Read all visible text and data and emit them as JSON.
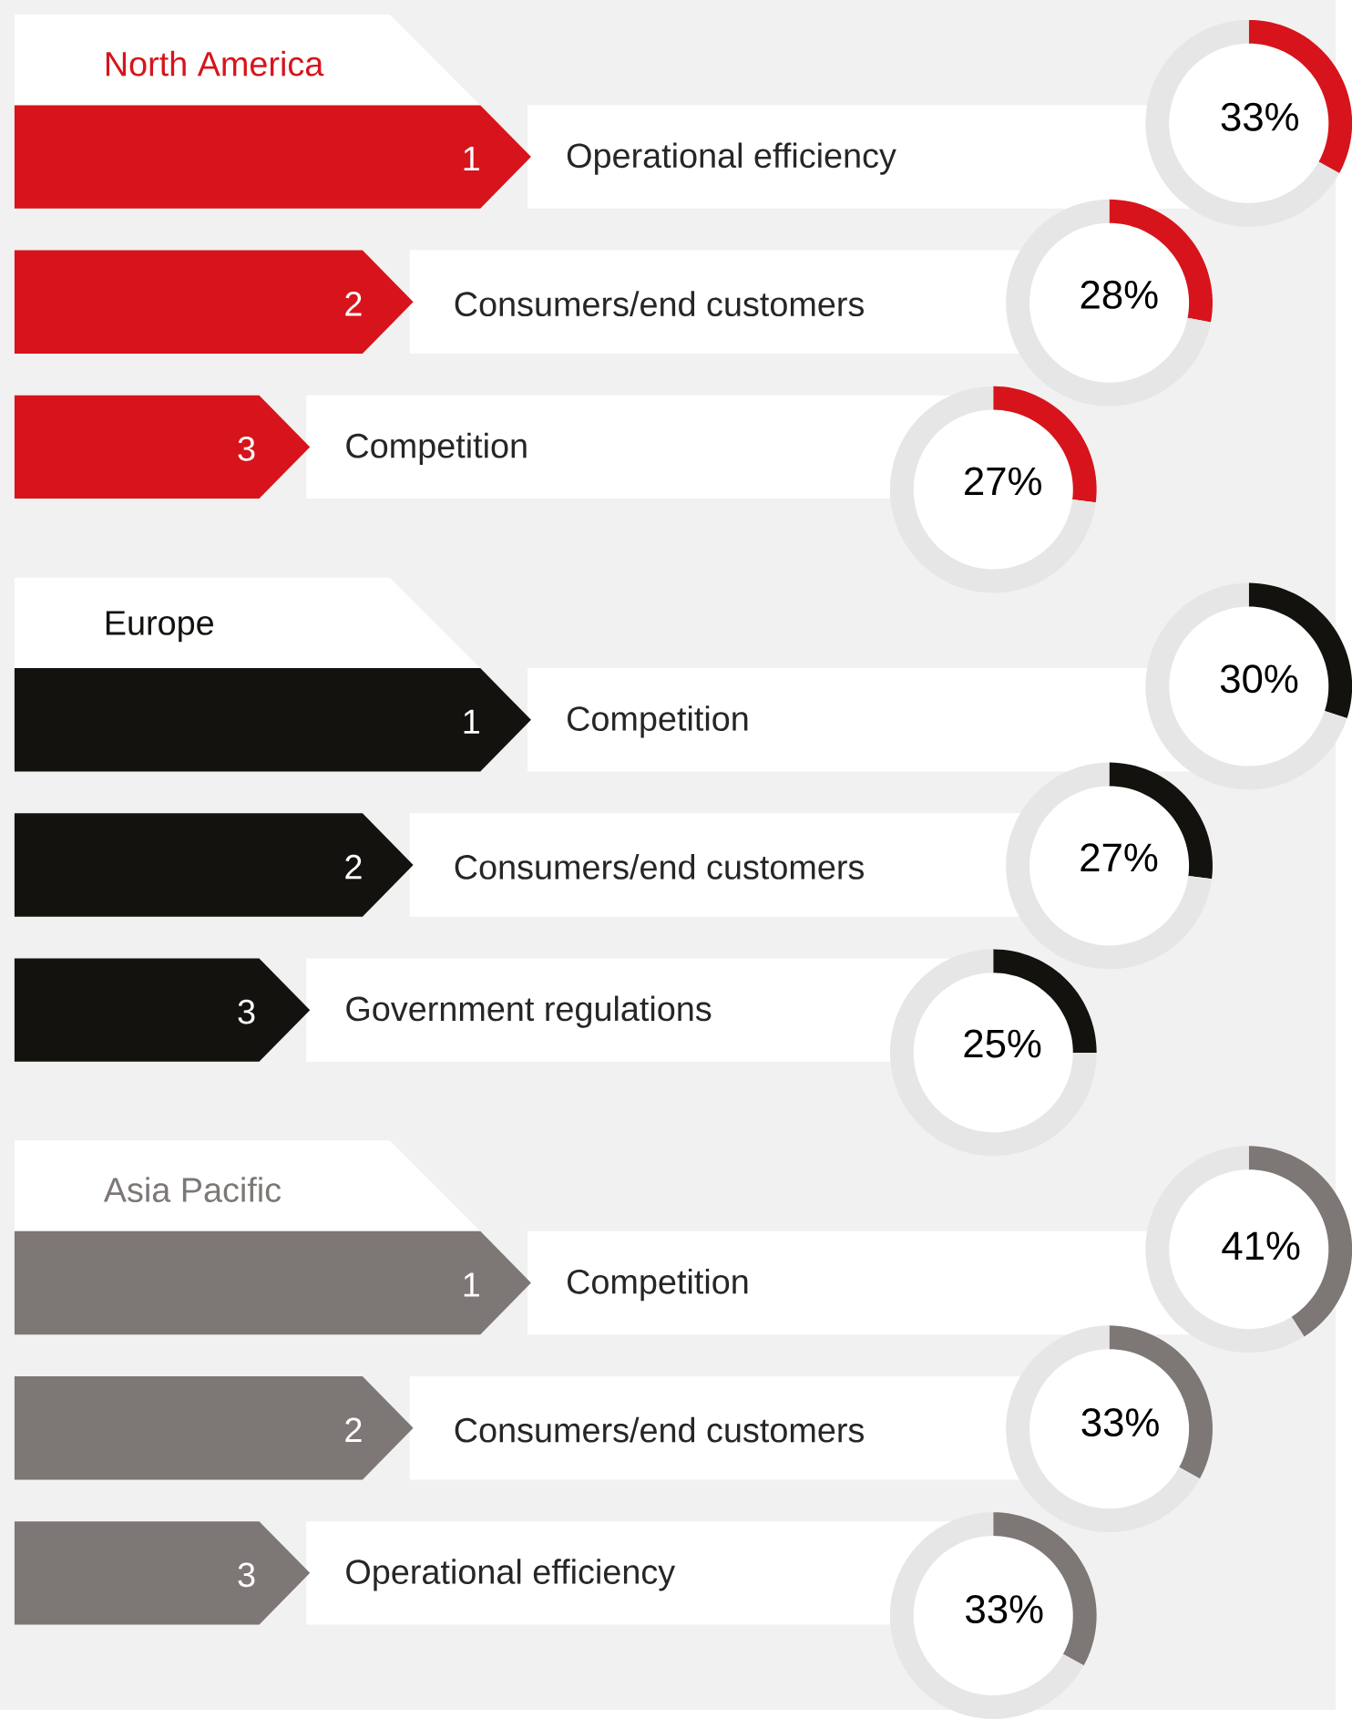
{
  "chart_data": [
    {
      "type": "other",
      "title": "North America",
      "colors": [
        "#d7141b"
      ]
    },
    {
      "type": "donut",
      "subtitle": "Operational efficiency",
      "categories": [
        null,
        null
      ],
      "values": [
        33,
        67
      ],
      "colors": [
        "#d7141b",
        "#e6e6e6"
      ],
      "value_labels": [
        "33%",
        null
      ],
      "annotations": [
        "1"
      ]
    },
    {
      "type": "donut",
      "subtitle": "Consumers/end customers",
      "categories": [
        null,
        null
      ],
      "values": [
        28,
        72
      ],
      "colors": [
        "#d7141b",
        "#e6e6e6"
      ],
      "value_labels": [
        "28%",
        null
      ],
      "annotations": [
        "2"
      ]
    },
    {
      "type": "donut",
      "subtitle": "Competition",
      "categories": [
        null,
        null
      ],
      "values": [
        27,
        73
      ],
      "colors": [
        "#d7141b",
        "#e6e6e6"
      ],
      "value_labels": [
        "27%",
        null
      ],
      "annotations": [
        "3"
      ]
    },
    {
      "type": "other",
      "title": "Europe",
      "colors": [
        "#13120f"
      ]
    },
    {
      "type": "donut",
      "subtitle": "Competition",
      "categories": [
        null,
        null
      ],
      "values": [
        30,
        70
      ],
      "colors": [
        "#13120f",
        "#e6e6e6"
      ],
      "value_labels": [
        "30%",
        null
      ],
      "annotations": [
        "1"
      ]
    },
    {
      "type": "donut",
      "subtitle": "Consumers/end customers",
      "categories": [
        null,
        null
      ],
      "values": [
        27,
        73
      ],
      "colors": [
        "#13120f",
        "#e6e6e6"
      ],
      "value_labels": [
        "27%",
        null
      ],
      "annotations": [
        "2"
      ]
    },
    {
      "type": "donut",
      "subtitle": "Government regulations",
      "categories": [
        null,
        null
      ],
      "values": [
        25,
        75
      ],
      "colors": [
        "#13120f",
        "#e6e6e6"
      ],
      "value_labels": [
        "25%",
        null
      ],
      "annotations": [
        "3"
      ]
    },
    {
      "type": "other",
      "title": "Asia Pacific",
      "colors": [
        "#7d7776"
      ]
    },
    {
      "type": "donut",
      "subtitle": "Competition",
      "categories": [
        null,
        null
      ],
      "values": [
        41,
        59
      ],
      "colors": [
        "#7d7776",
        "#e6e6e6"
      ],
      "value_labels": [
        "41%",
        null
      ],
      "annotations": [
        "1"
      ]
    },
    {
      "type": "donut",
      "subtitle": "Consumers/end customers",
      "categories": [
        null,
        null
      ],
      "values": [
        33,
        67
      ],
      "colors": [
        "#7d7776",
        "#e6e6e6"
      ],
      "value_labels": [
        "33%",
        null
      ],
      "annotations": [
        "2"
      ]
    },
    {
      "type": "donut",
      "subtitle": "Operational efficiency",
      "categories": [
        null,
        null
      ],
      "values": [
        33,
        67
      ],
      "colors": [
        "#7d7776",
        "#e6e6e6"
      ],
      "value_labels": [
        "33%",
        null
      ],
      "annotations": [
        "3"
      ]
    }
  ]
}
